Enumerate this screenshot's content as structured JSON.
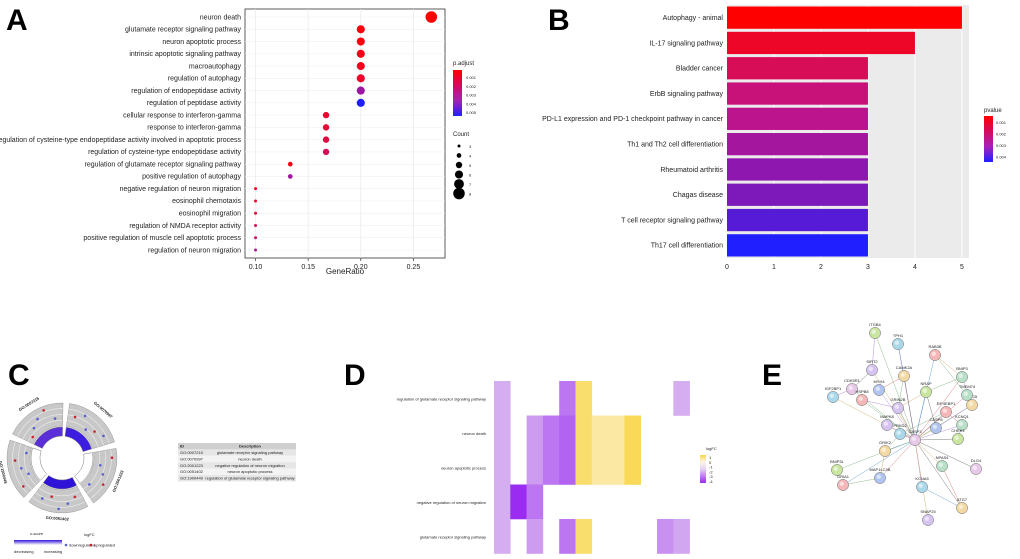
{
  "panels": [
    {
      "letter": "A"
    },
    {
      "letter": "B"
    },
    {
      "letter": "C"
    },
    {
      "letter": "D"
    },
    {
      "letter": "E"
    }
  ],
  "chart_data": [
    {
      "panel": "A",
      "type": "scatter",
      "xlabel": "GeneRatio",
      "xticks": [
        0.1,
        0.15,
        0.2,
        0.25
      ],
      "xlim": [
        0.09,
        0.28
      ],
      "terms": [
        {
          "term": "neuron death",
          "ratio": 0.267,
          "count": 8,
          "padj": 0.0004
        },
        {
          "term": "glutamate receptor signaling pathway",
          "ratio": 0.2,
          "count": 6,
          "padj": 0.0006
        },
        {
          "term": "neuron apoptotic process",
          "ratio": 0.2,
          "count": 6,
          "padj": 0.0007
        },
        {
          "term": "intrinsic apoptotic signaling pathway",
          "ratio": 0.2,
          "count": 6,
          "padj": 0.0008
        },
        {
          "term": "macroautophagy",
          "ratio": 0.2,
          "count": 6,
          "padj": 0.0009
        },
        {
          "term": "regulation of autophagy",
          "ratio": 0.2,
          "count": 6,
          "padj": 0.0012
        },
        {
          "term": "regulation of endopeptidase activity",
          "ratio": 0.2,
          "count": 6,
          "padj": 0.0035
        },
        {
          "term": "regulation of peptidase activity",
          "ratio": 0.2,
          "count": 6,
          "padj": 0.0055
        },
        {
          "term": "cellular response to interferon-gamma",
          "ratio": 0.167,
          "count": 5,
          "padj": 0.0013
        },
        {
          "term": "response to interferon-gamma",
          "ratio": 0.167,
          "count": 5,
          "padj": 0.0014
        },
        {
          "term": "regulation of cysteine-type endopeptidase activity involved in apoptotic process",
          "ratio": 0.167,
          "count": 5,
          "padj": 0.0016
        },
        {
          "term": "regulation of cysteine-type endopeptidase activity",
          "ratio": 0.167,
          "count": 5,
          "padj": 0.0021
        },
        {
          "term": "regulation of glutamate receptor signaling pathway",
          "ratio": 0.133,
          "count": 4,
          "padj": 0.0008
        },
        {
          "term": "positive regulation of autophagy",
          "ratio": 0.133,
          "count": 4,
          "padj": 0.0034
        },
        {
          "term": "negative regulation of neuron migration",
          "ratio": 0.1,
          "count": 3,
          "padj": 0.0009
        },
        {
          "term": "eosinophil chemotaxis",
          "ratio": 0.1,
          "count": 3,
          "padj": 0.0012
        },
        {
          "term": "eosinophil migration",
          "ratio": 0.1,
          "count": 3,
          "padj": 0.0013
        },
        {
          "term": "regulation of NMDA receptor activity",
          "ratio": 0.1,
          "count": 3,
          "padj": 0.0018
        },
        {
          "term": "positive regulation of muscle cell apoptotic process",
          "ratio": 0.1,
          "count": 3,
          "padj": 0.0024
        },
        {
          "term": "regulation of neuron migration",
          "ratio": 0.1,
          "count": 3,
          "padj": 0.0032
        }
      ],
      "color_legend": {
        "title": "p.adjust",
        "ticks": [
          "0.001",
          "0.002",
          "0.003",
          "0.004",
          "0.005"
        ]
      },
      "size_legend": {
        "title": "Count",
        "values": [
          3,
          4,
          5,
          6,
          7,
          8
        ]
      },
      "colors": {
        "low": "#ff0000",
        "high": "#1f1fff"
      }
    },
    {
      "panel": "B",
      "type": "bar",
      "orientation": "horizontal",
      "categories": [
        "Autophagy - animal",
        "IL-17 signaling pathway",
        "Bladder cancer",
        "ErbB signaling pathway",
        "PD-L1 expression and PD-1 checkpoint pathway in cancer",
        "Th1 and Th2 cell differentiation",
        "Rheumatoid arthritis",
        "Chagas disease",
        "T cell receptor signaling pathway",
        "Th17 cell differentiation"
      ],
      "values": [
        5,
        4,
        3,
        3,
        3,
        3,
        3,
        3,
        3,
        3
      ],
      "pvalues": [
        0.0003,
        0.0009,
        0.0016,
        0.0021,
        0.0024,
        0.0027,
        0.003,
        0.0032,
        0.0037,
        0.0044
      ],
      "xticks": [
        0,
        1,
        2,
        3,
        4,
        5
      ],
      "xlim": [
        0,
        5.15
      ],
      "color_legend": {
        "title": "pvalue",
        "ticks": [
          "0.001",
          "0.002",
          "0.003",
          "0.004"
        ]
      }
    },
    {
      "panel": "C",
      "type": "table",
      "sectors": [
        "GO:0007215",
        "GO:0070997",
        "GO:2001223",
        "GO:0051402",
        "GO:1900449"
      ],
      "table_header": [
        "ID",
        "Description"
      ],
      "table_rows": [
        [
          "GO:0007215",
          "glutamate receptor signaling pathway"
        ],
        [
          "GO:0070997",
          "neuron death"
        ],
        [
          "GO:2001223",
          "negative regulation of neuron migration"
        ],
        [
          "GO:0051402",
          "neuron apoptotic process"
        ],
        [
          "GO:1900449",
          "regulation of glutamate receptor signaling pathway"
        ]
      ],
      "legend": {
        "zscore_title": "z-score",
        "zscore_low": "decreasing",
        "zscore_high": "increasing",
        "logfc_title": "logFC",
        "down": "downregulated",
        "up": "upregulated"
      }
    },
    {
      "panel": "D",
      "type": "heatmap",
      "rows": [
        "regulation of glutamate receptor signaling pathway",
        "neuron death",
        "neuron apoptotic process",
        "negative regulation of neuron migration",
        "glutamate receptor signaling pathway"
      ],
      "values": [
        [
          -1,
          null,
          null,
          null,
          -2.5,
          1.5,
          null,
          null,
          null,
          null,
          null,
          -1
        ],
        [
          -1,
          null,
          -1.5,
          -2.5,
          -3,
          1.5,
          0.8,
          0.8,
          1.8,
          null,
          null,
          null
        ],
        [
          -1,
          null,
          -1.5,
          -2.5,
          -3,
          1.5,
          0.8,
          0.8,
          1.8,
          null,
          null,
          null
        ],
        [
          -1,
          -4.5,
          -2.5,
          null,
          null,
          null,
          null,
          null,
          null,
          null,
          null,
          null
        ],
        [
          -1,
          null,
          -1.5,
          null,
          -2.5,
          1.5,
          null,
          null,
          null,
          null,
          -1.8,
          -1.2
        ]
      ],
      "legend_title": "logFC",
      "legend_ticks": [
        "1",
        "0",
        "-1",
        "-2",
        "-3",
        "-4"
      ]
    },
    {
      "panel": "E",
      "type": "network",
      "nodes": [
        "ITGB4",
        "TPH1",
        "RAB3B",
        "SIRT2",
        "CAMK2A",
        "BNIP3",
        "CDK5R1",
        "MYH4",
        "NRAP",
        "IGF2BP1",
        "EIF4EBP1",
        "GRIN2B",
        "ATG5",
        "KCNQ1",
        "CASP3",
        "CASP8",
        "CHEK1",
        "PRKD2",
        "HSPB8",
        "MAPK8",
        "GRIK2",
        "NPAS4",
        "DLG4",
        "MAP1LC3B",
        "BNIP3L",
        "KCNA5",
        "GRIA1",
        "SNAP25",
        "ATG7",
        "TMEM74"
      ]
    }
  ]
}
